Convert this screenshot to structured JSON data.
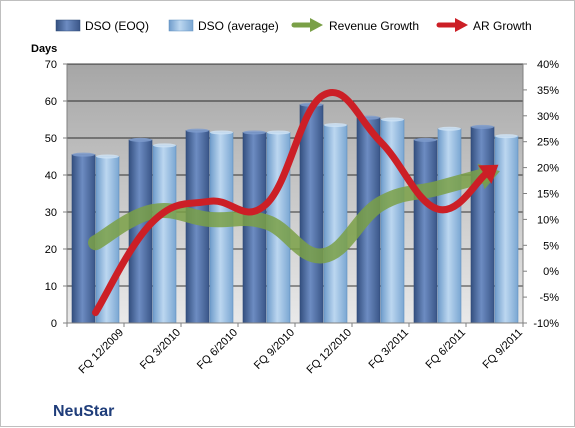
{
  "chart_data": {
    "type": "bar",
    "title": "NeuStar",
    "ylabel": "Days",
    "categories": [
      "FQ 12/2009",
      "FQ 3/2010",
      "FQ 6/2010",
      "FQ 9/2010",
      "FQ 12/2010",
      "FQ 3/2011",
      "FQ 6/2011",
      "FQ 9/2011"
    ],
    "series": [
      {
        "name": "DSO (EOQ)",
        "type": "bar",
        "axis": "left",
        "color": "#4a6aa0",
        "values": [
          45.5,
          49.5,
          52,
          51.5,
          59,
          55.5,
          49.5,
          53
        ]
      },
      {
        "name": "DSO (average)",
        "type": "bar",
        "axis": "left",
        "color": "#9dc3e6",
        "values": [
          45,
          48,
          51.5,
          51.5,
          53.5,
          55,
          52.5,
          50.5
        ]
      },
      {
        "name": "Revenue Growth",
        "type": "line",
        "axis": "right",
        "color": "#7aa047",
        "unit": "%",
        "values": [
          5.5,
          11.5,
          10,
          9.5,
          3,
          13,
          16,
          19
        ]
      },
      {
        "name": "AR Growth",
        "type": "line",
        "axis": "right",
        "color": "#cc1f26",
        "unit": "%",
        "values": [
          -8,
          9.5,
          13.5,
          13,
          34,
          25,
          12,
          20
        ]
      }
    ],
    "ylim": [
      0,
      70
    ],
    "y_ticks": [
      0,
      10,
      20,
      30,
      40,
      50,
      60,
      70
    ],
    "y2lim": [
      -10,
      40
    ],
    "y2_ticks": [
      "-10%",
      "-5%",
      "0%",
      "5%",
      "10%",
      "15%",
      "20%",
      "25%",
      "30%",
      "35%",
      "40%"
    ],
    "grid": true,
    "legend_position": "top",
    "plot_background": "#c0c0c0"
  }
}
